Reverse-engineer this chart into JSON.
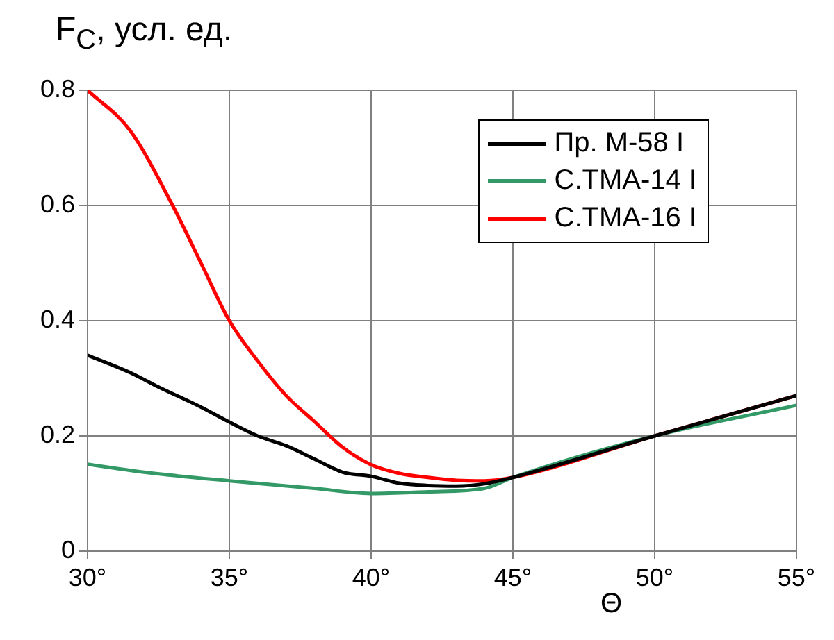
{
  "chart_data": {
    "type": "line",
    "ylabel": "F$_{C}$, усл. ед.",
    "xlabel": "Θ",
    "xlim": [
      30,
      55
    ],
    "xticks": [
      {
        "value": 30,
        "label": "30°"
      },
      {
        "value": 35,
        "label": "35°"
      },
      {
        "value": 40,
        "label": "40°"
      },
      {
        "value": 45,
        "label": "45°"
      },
      {
        "value": 50,
        "label": "50°"
      },
      {
        "value": 55,
        "label": "55°"
      }
    ],
    "ylim": [
      0,
      0.8
    ],
    "yticks": [
      0,
      0.2,
      0.4,
      0.6,
      0.8
    ],
    "grid": true,
    "legend": "top right",
    "marker": "none",
    "line_style": "solid",
    "series": [
      {
        "name": "Пр. М-58 I",
        "color": "#000000",
        "x": [
          30,
          31.5,
          32.5,
          34,
          35,
          36,
          37,
          38,
          39,
          40,
          41,
          42,
          43,
          44,
          45,
          50,
          55
        ],
        "values": [
          0.34,
          0.31,
          0.285,
          0.25,
          0.224,
          0.2,
          0.183,
          0.16,
          0.137,
          0.13,
          0.118,
          0.114,
          0.113,
          0.117,
          0.128,
          0.2,
          0.27
        ]
      },
      {
        "name": "С.ТМА-14 I",
        "color": "#339966",
        "x": [
          30,
          32,
          35,
          38,
          40,
          42,
          44,
          45,
          50,
          55
        ],
        "values": [
          0.151,
          0.137,
          0.122,
          0.109,
          0.1,
          0.103,
          0.109,
          0.128,
          0.2,
          0.253
        ]
      },
      {
        "name": "С.ТМА-16 I",
        "color": "#ff0000",
        "x": [
          30,
          31.5,
          33,
          34,
          35,
          36,
          37,
          38,
          39,
          40,
          41,
          42,
          43,
          44,
          45,
          50,
          55
        ],
        "values": [
          0.8,
          0.73,
          0.6,
          0.5,
          0.4,
          0.33,
          0.27,
          0.225,
          0.18,
          0.15,
          0.135,
          0.128,
          0.123,
          0.122,
          0.128,
          0.2,
          0.27
        ]
      }
    ]
  }
}
